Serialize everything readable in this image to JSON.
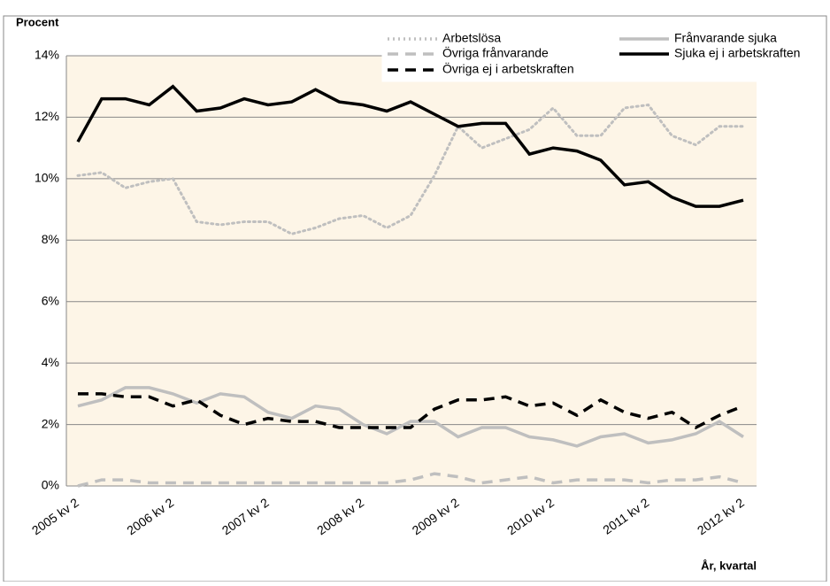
{
  "chart_data": {
    "type": "line",
    "y_label": "Procent",
    "x_label": "År, kvartal",
    "categories": [
      "2005 kv 2",
      null,
      null,
      null,
      "2006 kv 2",
      null,
      null,
      null,
      "2007 kv 2",
      null,
      null,
      null,
      "2008 kv 2",
      null,
      null,
      null,
      "2009 kv 2",
      null,
      null,
      null,
      "2010 kv 2",
      null,
      null,
      null,
      "2011 kv 2",
      null,
      null,
      null,
      "2012 kv 2"
    ],
    "series": [
      {
        "name": "Arbetslösa",
        "color": "#bfbfbf",
        "style": "dotted",
        "values": [
          10.1,
          10.2,
          9.7,
          9.9,
          10.0,
          8.6,
          8.5,
          8.6,
          8.6,
          8.2,
          8.4,
          8.7,
          8.8,
          8.4,
          8.8,
          10.1,
          11.7,
          11.0,
          11.3,
          11.6,
          12.3,
          11.4,
          11.4,
          12.3,
          12.4,
          11.4,
          11.1,
          11.7,
          11.7
        ]
      },
      {
        "name": "Frånvarande sjuka",
        "color": "#bfbfbf",
        "style": "solid",
        "values": [
          2.6,
          2.8,
          3.2,
          3.2,
          3.0,
          2.7,
          3.0,
          2.9,
          2.4,
          2.2,
          2.6,
          2.5,
          2.0,
          1.7,
          2.1,
          2.1,
          1.6,
          1.9,
          1.9,
          1.6,
          1.5,
          1.3,
          1.6,
          1.7,
          1.4,
          1.5,
          1.7,
          2.1,
          1.6
        ]
      },
      {
        "name": "Övriga frånvarande",
        "color": "#bfbfbf",
        "style": "dashed",
        "values": [
          0.0,
          0.2,
          0.2,
          0.1,
          0.1,
          0.1,
          0.1,
          0.1,
          0.1,
          0.1,
          0.1,
          0.1,
          0.1,
          0.1,
          0.2,
          0.4,
          0.3,
          0.1,
          0.2,
          0.3,
          0.1,
          0.2,
          0.2,
          0.2,
          0.1,
          0.2,
          0.2,
          0.3,
          0.1
        ]
      },
      {
        "name": "Sjuka ej i arbetskraften",
        "color": "#000000",
        "style": "solid",
        "values": [
          11.2,
          12.6,
          12.6,
          12.4,
          13.0,
          12.2,
          12.3,
          12.6,
          12.4,
          12.5,
          12.9,
          12.5,
          12.4,
          12.2,
          12.5,
          12.1,
          11.7,
          11.8,
          11.8,
          10.8,
          11.0,
          10.9,
          10.6,
          9.8,
          9.9,
          9.4,
          9.1,
          9.1,
          9.3
        ]
      },
      {
        "name": "Övriga ej i arbetskraften",
        "color": "#000000",
        "style": "dashed",
        "values": [
          3.0,
          3.0,
          2.9,
          2.9,
          2.6,
          2.8,
          2.3,
          2.0,
          2.2,
          2.1,
          2.1,
          1.9,
          1.9,
          1.9,
          1.9,
          2.5,
          2.8,
          2.8,
          2.9,
          2.6,
          2.7,
          2.3,
          2.8,
          2.4,
          2.2,
          2.4,
          1.9,
          2.3,
          2.6
        ]
      }
    ],
    "ylim": [
      0,
      14
    ],
    "yticks": [
      {
        "value": 0,
        "label": "0%"
      },
      {
        "value": 2,
        "label": "2%"
      },
      {
        "value": 4,
        "label": "4%"
      },
      {
        "value": 6,
        "label": "6%"
      },
      {
        "value": 8,
        "label": "8%"
      },
      {
        "value": 10,
        "label": "10%"
      },
      {
        "value": 12,
        "label": "12%"
      },
      {
        "value": 14,
        "label": "14%"
      }
    ],
    "grid": true,
    "plot_background": "#fdf5e7"
  }
}
